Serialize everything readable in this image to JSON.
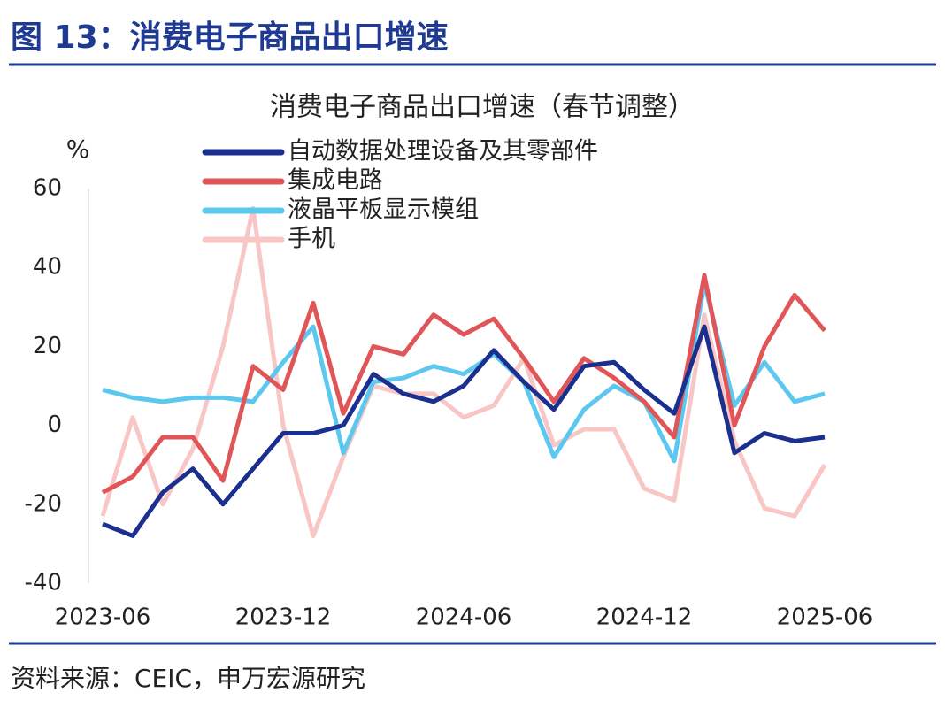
{
  "header": {
    "title": "图 13：消费电子商品出口增速"
  },
  "chart_data": {
    "type": "line",
    "title": "消费电子商品出口增速（春节调整）",
    "y_label": "%",
    "categories": [
      "2023-06",
      null,
      null,
      null,
      null,
      null,
      "2023-12",
      null,
      null,
      null,
      null,
      null,
      "2024-06",
      null,
      null,
      null,
      null,
      null,
      "2024-12",
      null,
      null,
      null,
      null,
      null,
      "2025-06"
    ],
    "series": [
      {
        "name": "自动数据处理设备及其零部件",
        "color": "#1b2f8e",
        "values": [
          -25,
          -28,
          -17,
          -11,
          -20,
          -11,
          -2,
          -2,
          0,
          13,
          8,
          6,
          10,
          19,
          11,
          4,
          15,
          16,
          9,
          3,
          25,
          -7,
          -2,
          -4,
          -3
        ]
      },
      {
        "name": "集成电路",
        "color": "#e05658",
        "values": [
          -17,
          -13,
          -3,
          -3,
          -14,
          15,
          9,
          31,
          3,
          20,
          18,
          28,
          23,
          27,
          17,
          6,
          17,
          12,
          6,
          -3,
          38,
          0,
          20,
          33,
          24
        ]
      },
      {
        "name": "液晶平板显示模组",
        "color": "#5cc8f0",
        "values": [
          9,
          7,
          6,
          7,
          7,
          6,
          16,
          25,
          -7,
          11,
          12,
          15,
          13,
          18,
          11,
          -8,
          4,
          10,
          6,
          -9,
          36,
          5,
          16,
          6,
          8
        ]
      },
      {
        "name": "手机",
        "color": "#f8c6c4",
        "values": [
          -23,
          2,
          -20,
          -6,
          20,
          55,
          0,
          -28,
          -8,
          10,
          8,
          8,
          2,
          5,
          17,
          -5,
          -1,
          -1,
          -16,
          -19,
          28,
          -4,
          -21,
          -23,
          -10
        ]
      }
    ],
    "ylim": [
      -40,
      60
    ],
    "yticks": [
      -40,
      -20,
      0,
      20,
      40,
      60
    ]
  },
  "footer": {
    "source": "资料来源：CEIC，申万宏源研究"
  }
}
